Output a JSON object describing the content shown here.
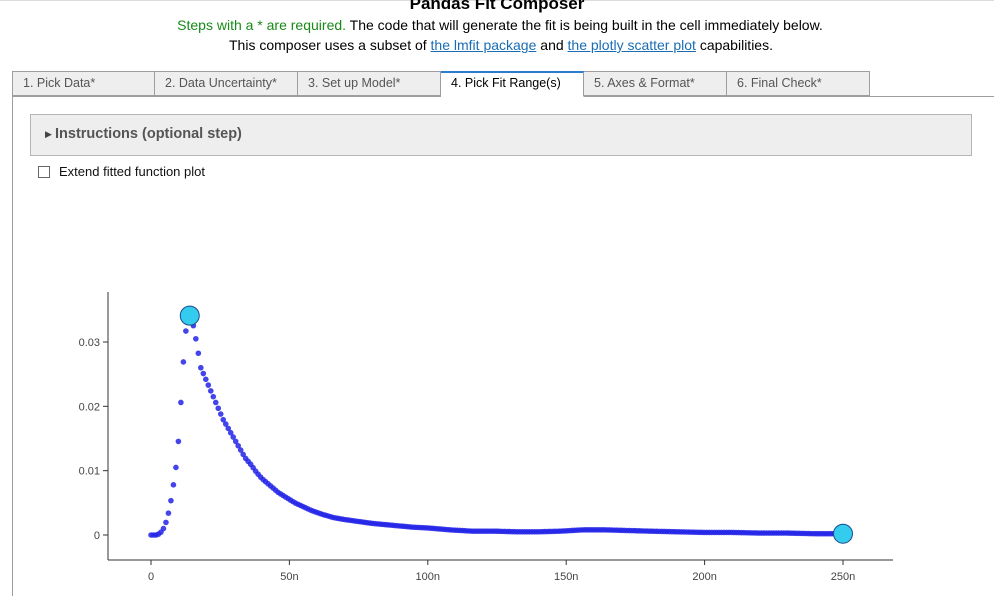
{
  "header": {
    "title": "Pandas Fit Composer",
    "required_note": "Steps with a * are required.",
    "line1_rest": " The code that will generate the fit is being built in the cell immediately below.",
    "line2_prefix": "This composer uses a subset of ",
    "link_lmfit": "the lmfit package",
    "line2_mid": " and ",
    "link_plotly": "the plotly scatter plot",
    "line2_suffix": " capabilities."
  },
  "tabs": [
    {
      "label": "1. Pick Data*"
    },
    {
      "label": "2. Data Uncertainty*"
    },
    {
      "label": "3. Set up Model*"
    },
    {
      "label": "4. Pick Fit Range(s)"
    },
    {
      "label": "5. Axes & Format*"
    },
    {
      "label": "6. Final Check*"
    }
  ],
  "active_tab_index": 3,
  "accordion": {
    "caret_icon": "triangle-right-icon",
    "title": "Instructions (optional step)"
  },
  "checkbox": {
    "label": "Extend fitted function plot",
    "checked": false
  },
  "colors": {
    "points": "#2323e8",
    "range_marker": "#33ccee",
    "required": "#188a18",
    "link": "#1a6db5",
    "active_tab": "#2b7bd1"
  },
  "chart_data": {
    "type": "scatter",
    "x_ticks": [
      "0",
      "50n",
      "100n",
      "150n",
      "200n",
      "250n"
    ],
    "y_ticks": [
      "0",
      "0.01",
      "0.02",
      "0.03"
    ],
    "x_tick_values": [
      0,
      50,
      100,
      150,
      200,
      250
    ],
    "y_tick_values": [
      0,
      0.01,
      0.02,
      0.03
    ],
    "x_unit_scale": "1e-9",
    "xlim": [
      -8,
      268
    ],
    "ylim": [
      -0.004,
      0.038
    ],
    "range_markers": [
      {
        "x": 14,
        "y": 0.0341
      },
      {
        "x": 250,
        "y": 0.0002
      }
    ],
    "series": [
      {
        "x": [
          0,
          1,
          2,
          3,
          4,
          5,
          6,
          7,
          8,
          9,
          10,
          11,
          12,
          13,
          14,
          15,
          16,
          17,
          18,
          19,
          20,
          22,
          24,
          26,
          28,
          30,
          32,
          34,
          36,
          38,
          40,
          43,
          46,
          49,
          52,
          55,
          58,
          62,
          66,
          70,
          75,
          80,
          85,
          90,
          95,
          100,
          108,
          116,
          124,
          132,
          140,
          148,
          156,
          164,
          172,
          180,
          190,
          200,
          210,
          220,
          230,
          240,
          250
        ],
        "y": [
          0,
          0,
          0,
          0.0002,
          0.0006,
          0.0014,
          0.0028,
          0.0048,
          0.0075,
          0.0105,
          0.015,
          0.022,
          0.029,
          0.0335,
          0.0341,
          0.0332,
          0.031,
          0.0285,
          0.026,
          0.025,
          0.024,
          0.022,
          0.02,
          0.018,
          0.0165,
          0.015,
          0.0135,
          0.012,
          0.011,
          0.0098,
          0.0088,
          0.0077,
          0.0066,
          0.0058,
          0.005,
          0.0044,
          0.0038,
          0.0032,
          0.0027,
          0.0024,
          0.0021,
          0.0018,
          0.0016,
          0.0014,
          0.0012,
          0.0011,
          0.0008,
          0.0006,
          0.0006,
          0.0005,
          0.0005,
          0.0006,
          0.0008,
          0.0008,
          0.0007,
          0.0006,
          0.0005,
          0.0004,
          0.0004,
          0.0003,
          0.0003,
          0.0002,
          0.0002
        ]
      }
    ]
  }
}
